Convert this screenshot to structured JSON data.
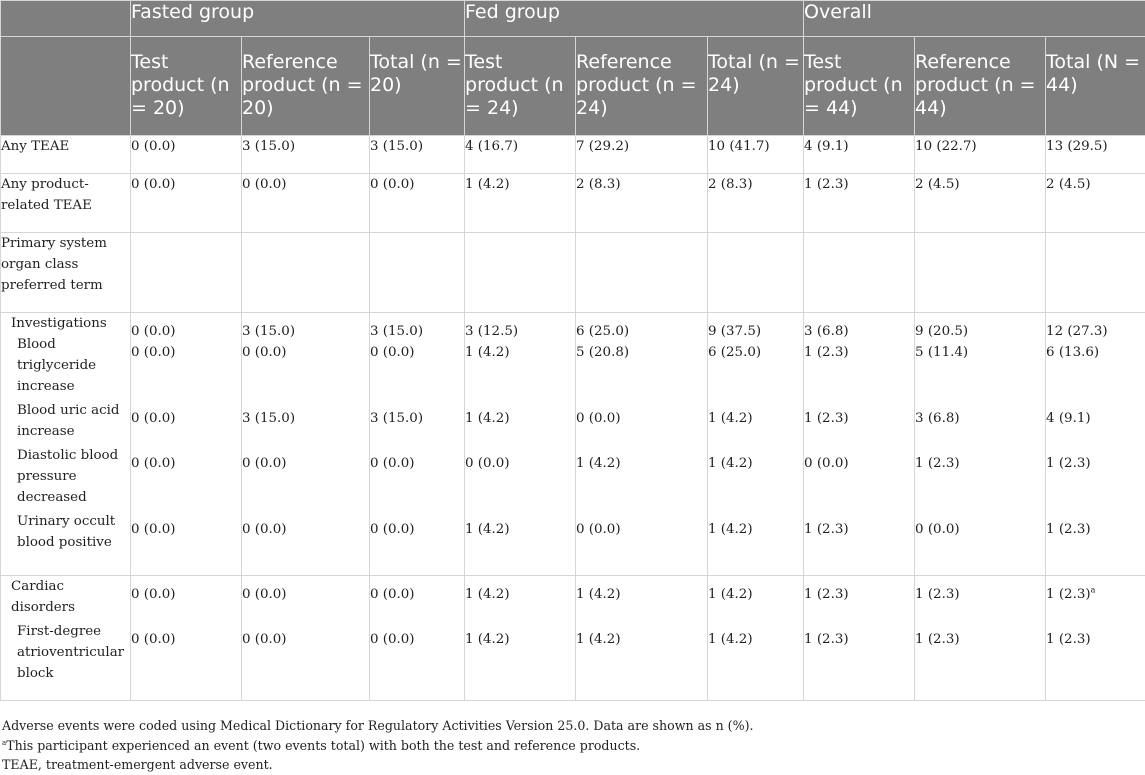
{
  "header": {
    "groups": [
      "Fasted group",
      "Fed group",
      "Overall"
    ],
    "columns": [
      "Test product (n = 20)",
      "Reference product (n = 20)",
      "Total (n = 20)",
      "Test product (n = 24)",
      "Reference product (n = 24)",
      "Total (n = 24)",
      "Test product (n = 44)",
      "Reference product (n = 44)",
      "Total (N = 44)"
    ]
  },
  "rows": [
    {
      "label": "Any TEAE",
      "values": [
        "0 (0.0)",
        "3 (15.0)",
        "3 (15.0)",
        "4 (16.7)",
        "7 (29.2)",
        "10 (41.7)",
        "4 (9.1)",
        "10 (22.7)",
        "13 (29.5)"
      ]
    },
    {
      "label": "Any product-related TEAE",
      "values": [
        "0 (0.0)",
        "0 (0.0)",
        "0 (0.0)",
        "1 (4.2)",
        "2 (8.3)",
        "2 (8.3)",
        "1 (2.3)",
        "2 (4.5)",
        "2 (4.5)"
      ]
    },
    {
      "label": "Primary system organ class preferred term",
      "values": [
        "",
        "",
        "",
        "",
        "",
        "",
        "",
        "",
        ""
      ]
    },
    {
      "label": "Investigations",
      "values": [
        "0 (0.0)",
        "3 (15.0)",
        "3 (15.0)",
        "3 (12.5)",
        "6 (25.0)",
        "9 (37.5)",
        "3 (6.8)",
        "9 (20.5)",
        "12 (27.3)"
      ]
    },
    {
      "label": "Blood triglyceride increase",
      "values": [
        "0 (0.0)",
        "0 (0.0)",
        "0 (0.0)",
        "1 (4.2)",
        "5 (20.8)",
        "6 (25.0)",
        "1 (2.3)",
        "5 (11.4)",
        "6 (13.6)"
      ]
    },
    {
      "label": "Blood uric acid increase",
      "values": [
        "0 (0.0)",
        "3 (15.0)",
        "3 (15.0)",
        "1 (4.2)",
        "0 (0.0)",
        "1 (4.2)",
        "1 (2.3)",
        "3 (6.8)",
        "4 (9.1)"
      ]
    },
    {
      "label": "Diastolic blood pressure decreased",
      "values": [
        "0 (0.0)",
        "0 (0.0)",
        "0 (0.0)",
        "0 (0.0)",
        "1 (4.2)",
        "1 (4.2)",
        "0 (0.0)",
        "1 (2.3)",
        "1 (2.3)"
      ]
    },
    {
      "label": "Urinary occult blood positive",
      "values": [
        "0 (0.0)",
        "0 (0.0)",
        "0 (0.0)",
        "1 (4.2)",
        "0 (0.0)",
        "1 (4.2)",
        "1 (2.3)",
        "0 (0.0)",
        "1 (2.3)"
      ]
    },
    {
      "label": "Cardiac disorders",
      "values": [
        "0 (0.0)",
        "0 (0.0)",
        "0 (0.0)",
        "1 (4.2)",
        "1 (4.2)",
        "1 (4.2)",
        "1 (2.3)",
        "1 (2.3)",
        "1 (2.3)"
      ],
      "last_note": "a"
    },
    {
      "label": "First-degree atrioventricular block",
      "values": [
        "0 (0.0)",
        "0 (0.0)",
        "0 (0.0)",
        "1 (4.2)",
        "1 (4.2)",
        "1 (4.2)",
        "1 (2.3)",
        "1 (2.3)",
        "1 (2.3)"
      ]
    }
  ],
  "footnotes": {
    "line1": "Adverse events were coded using Medical Dictionary for Regulatory Activities Version 25.0. Data are shown as n (%).",
    "note_marker": "a",
    "line2": "This participant experienced an event (two events total) with both the test and reference products.",
    "line3": "TEAE, treatment-emergent adverse event."
  }
}
